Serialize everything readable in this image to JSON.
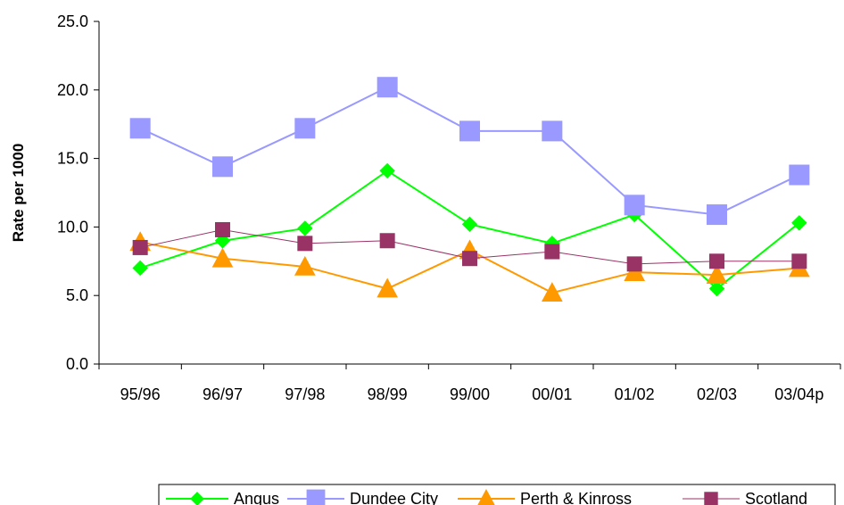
{
  "chart_data": {
    "type": "line",
    "title": "",
    "xlabel": "",
    "ylabel": "Rate per 1000",
    "categories": [
      "95/96",
      "96/97",
      "97/98",
      "98/99",
      "99/00",
      "00/01",
      "01/02",
      "02/03",
      "03/04p"
    ],
    "ylim": [
      0,
      25
    ],
    "yticks": [
      "0.0",
      "5.0",
      "10.0",
      "15.0",
      "20.0",
      "25.0"
    ],
    "grid": false,
    "legend_position": "bottom",
    "series": [
      {
        "name": "Angus",
        "color": "#00ff00",
        "marker": "diamond",
        "values": [
          7.0,
          9.0,
          9.9,
          14.1,
          10.2,
          8.8,
          10.9,
          5.5,
          10.3
        ]
      },
      {
        "name": "Dundee City",
        "color": "#9999ff",
        "marker": "square",
        "values": [
          17.2,
          14.4,
          17.2,
          20.2,
          17.0,
          17.0,
          11.6,
          10.9,
          13.8
        ]
      },
      {
        "name": "Perth & Kinross",
        "color": "#ff9900",
        "marker": "triangle",
        "values": [
          8.9,
          7.7,
          7.1,
          5.5,
          8.3,
          5.2,
          6.7,
          6.5,
          7.0
        ]
      },
      {
        "name": "Scotland",
        "color": "#993366",
        "marker": "square",
        "values": [
          8.5,
          9.8,
          8.8,
          9.0,
          7.7,
          8.2,
          7.3,
          7.5,
          7.5
        ]
      }
    ]
  }
}
